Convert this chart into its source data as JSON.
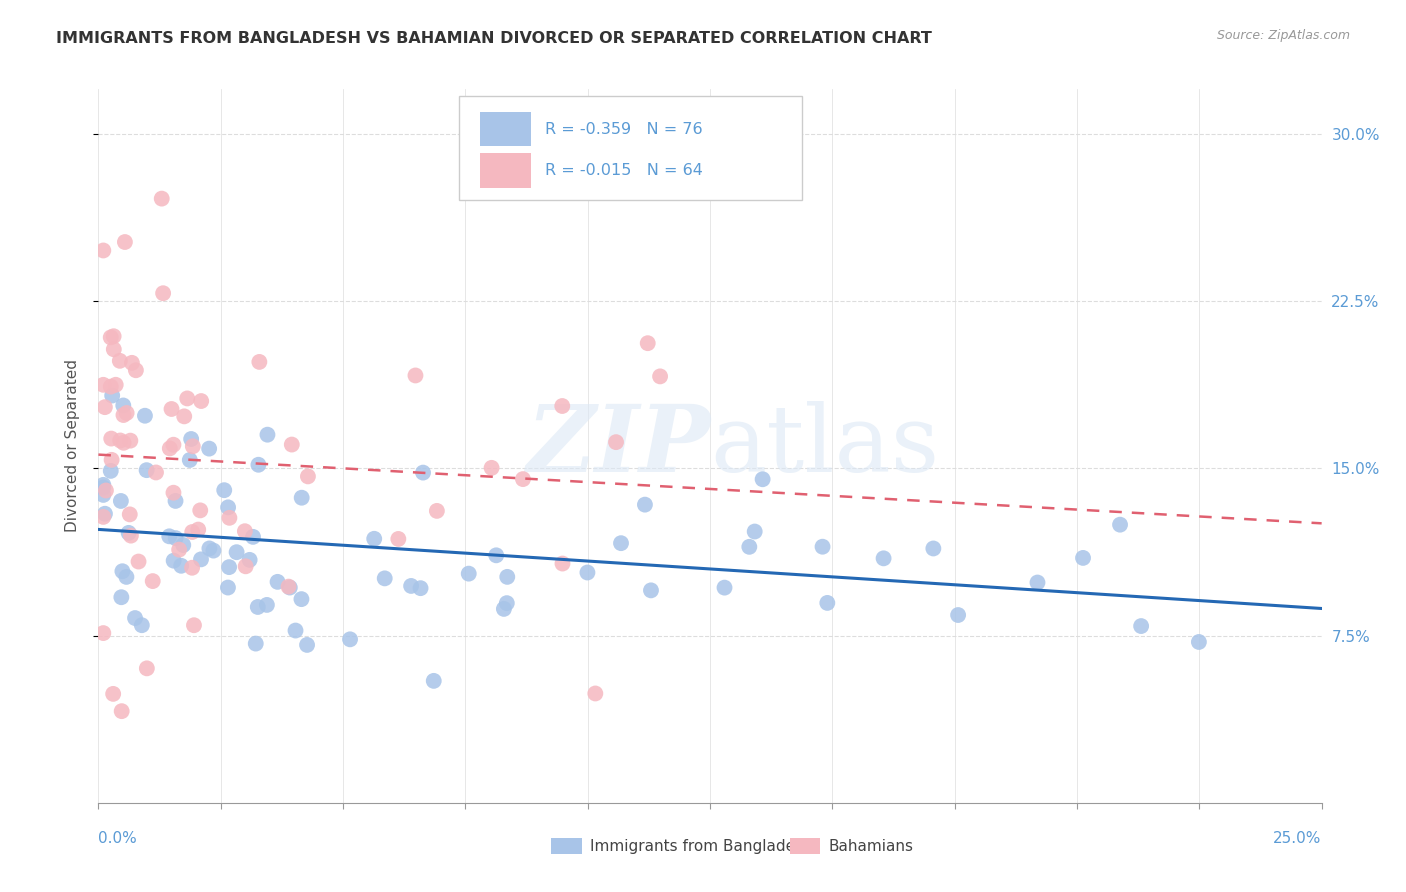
{
  "title": "IMMIGRANTS FROM BANGLADESH VS BAHAMIAN DIVORCED OR SEPARATED CORRELATION CHART",
  "source": "Source: ZipAtlas.com",
  "ylabel": "Divorced or Separated",
  "blue_color": "#a8c4e8",
  "pink_color": "#f5b8c0",
  "blue_line_color": "#2468b4",
  "pink_line_color": "#e06070",
  "watermark_zip": "ZIP",
  "watermark_atlas": "atlas",
  "legend_r_blue": "R = -0.359",
  "legend_n_blue": "N = 76",
  "legend_r_pink": "R = -0.015",
  "legend_n_pink": "N = 64",
  "label_blue": "Immigrants from Bangladesh",
  "label_pink": "Bahamians",
  "xlim": [
    0.0,
    0.25
  ],
  "ylim": [
    0.0,
    0.32
  ],
  "ytick_vals": [
    0.075,
    0.15,
    0.225,
    0.3
  ],
  "ytick_labels": [
    "7.5%",
    "15.0%",
    "22.5%",
    "30.0%"
  ],
  "grid_color": "#dddddd",
  "text_color": "#5b9bd5",
  "axis_label_color": "#555555",
  "title_color": "#333333",
  "source_color": "#999999"
}
